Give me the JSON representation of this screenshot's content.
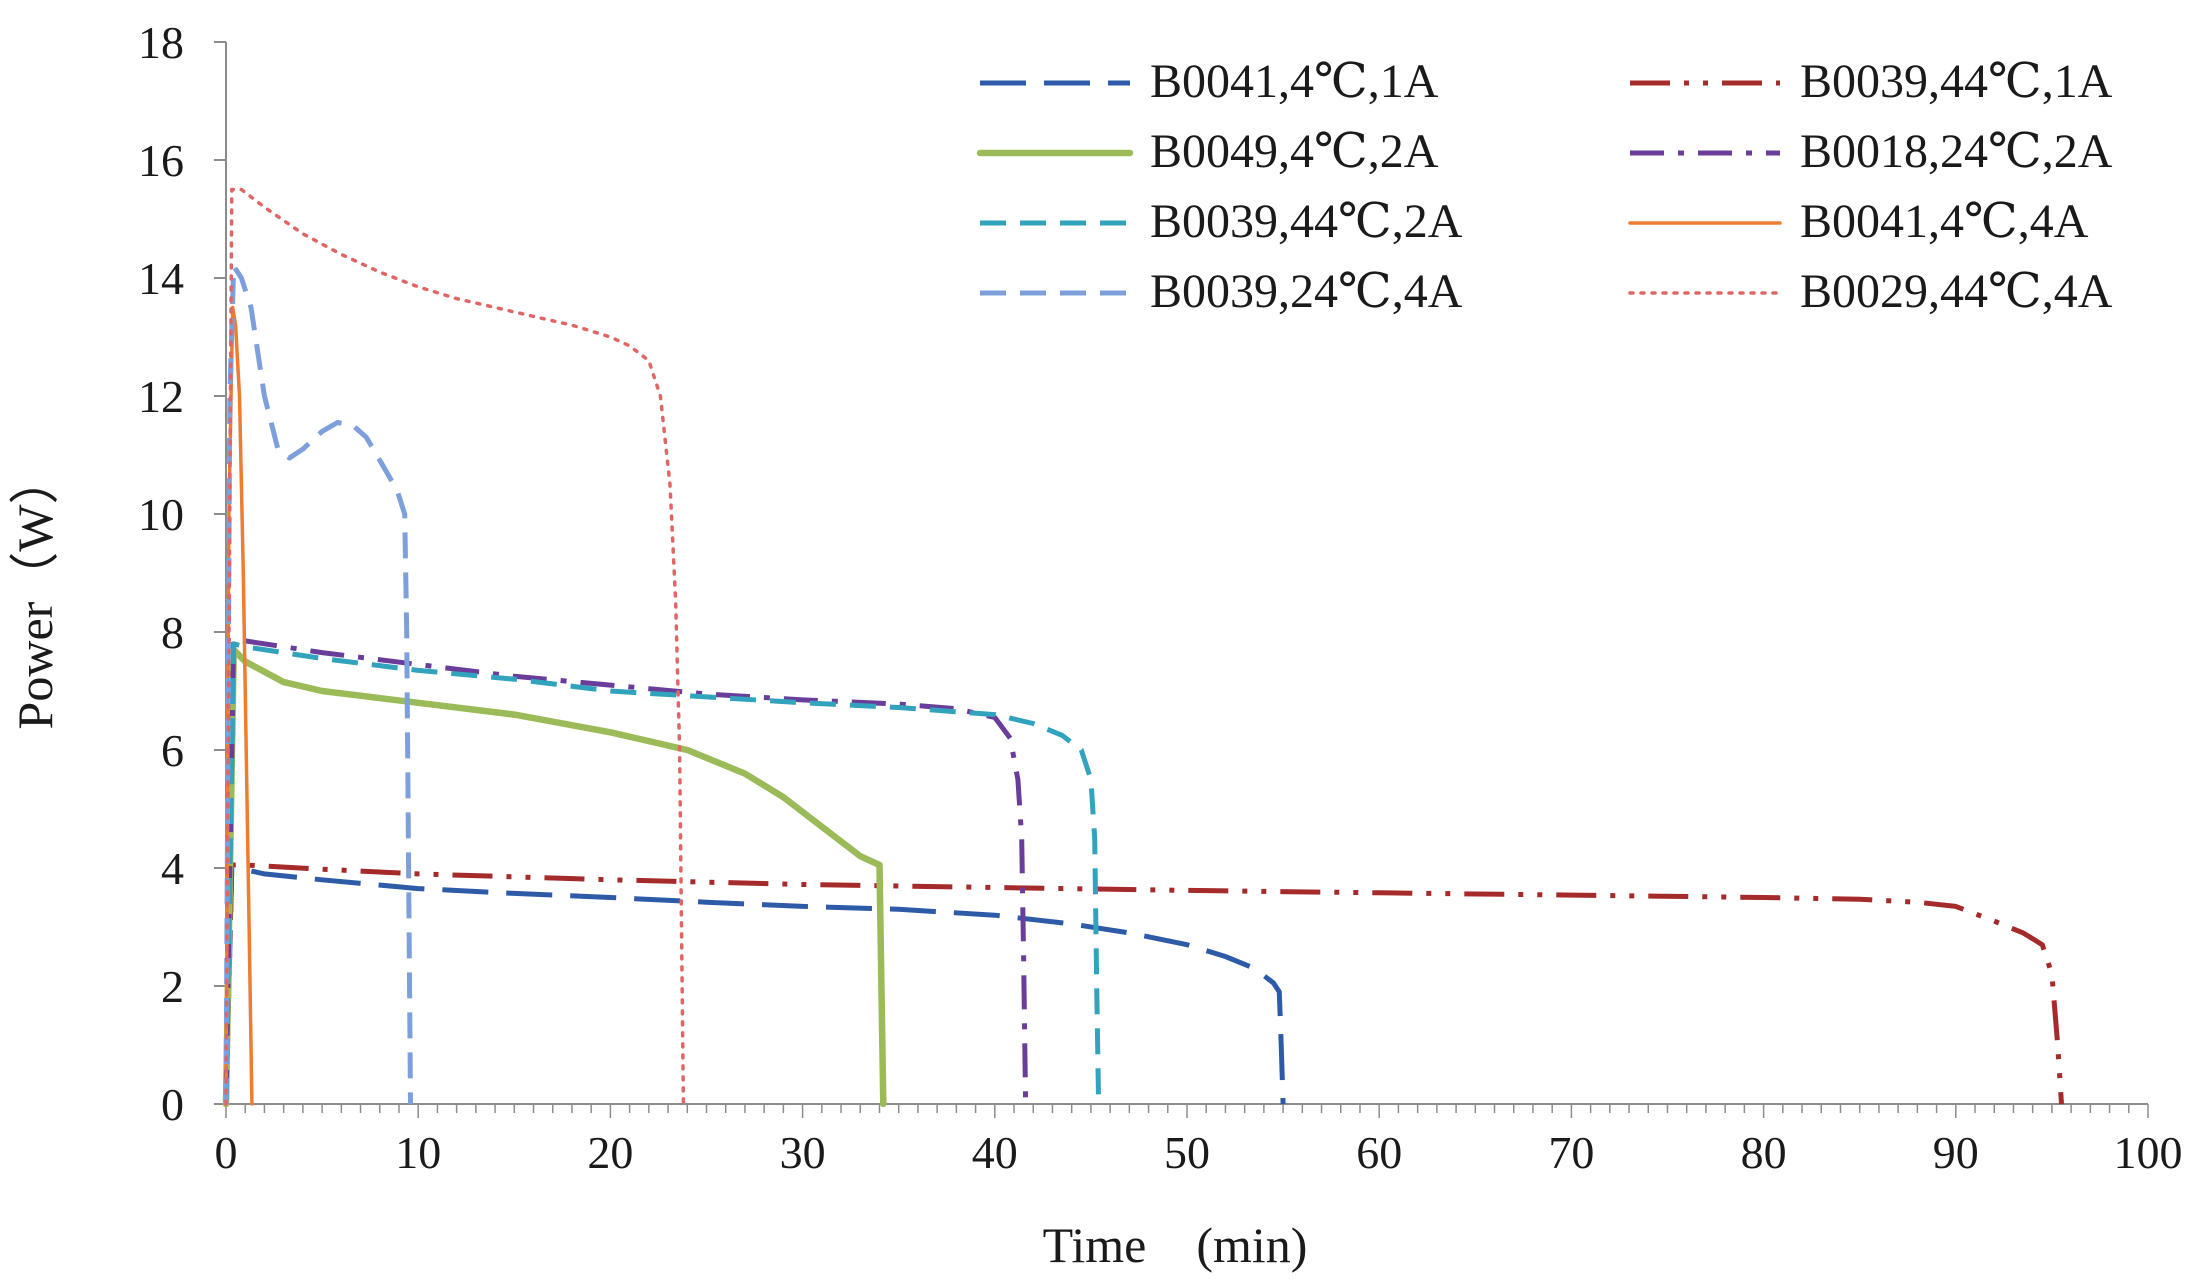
{
  "chart_data": {
    "type": "line",
    "title": "",
    "xlabel": "Time　(min)",
    "ylabel": "Power（W）",
    "xlim": [
      0,
      100
    ],
    "ylim": [
      0,
      18
    ],
    "xticks": [
      0,
      10,
      20,
      30,
      40,
      50,
      60,
      70,
      80,
      90,
      100
    ],
    "yticks": [
      0,
      2,
      4,
      6,
      8,
      10,
      12,
      14,
      16,
      18
    ],
    "x_minor_step": 1,
    "grid": false,
    "legend_position": "top-right",
    "series": [
      {
        "name": "B0041,4℃,1A",
        "color": "#2e5ba8",
        "style": "long-dash",
        "points": [
          [
            0,
            0
          ],
          [
            0.3,
            4.0
          ],
          [
            0.6,
            4.0
          ],
          [
            2,
            3.9
          ],
          [
            5,
            3.8
          ],
          [
            10,
            3.65
          ],
          [
            15,
            3.57
          ],
          [
            20,
            3.5
          ],
          [
            25,
            3.42
          ],
          [
            30,
            3.35
          ],
          [
            35,
            3.3
          ],
          [
            40,
            3.2
          ],
          [
            44,
            3.05
          ],
          [
            47,
            2.9
          ],
          [
            50,
            2.7
          ],
          [
            52,
            2.5
          ],
          [
            53.5,
            2.3
          ],
          [
            54.5,
            2.05
          ],
          [
            54.8,
            1.9
          ],
          [
            54.9,
            1.0
          ],
          [
            55,
            0
          ]
        ]
      },
      {
        "name": "B0039,44℃,1A",
        "color": "#a52a2a",
        "style": "dash-dot-dot",
        "points": [
          [
            0,
            0
          ],
          [
            0.3,
            4.05
          ],
          [
            1,
            4.05
          ],
          [
            5,
            3.98
          ],
          [
            10,
            3.9
          ],
          [
            20,
            3.8
          ],
          [
            30,
            3.72
          ],
          [
            40,
            3.67
          ],
          [
            50,
            3.62
          ],
          [
            60,
            3.58
          ],
          [
            70,
            3.54
          ],
          [
            80,
            3.5
          ],
          [
            85,
            3.47
          ],
          [
            88,
            3.42
          ],
          [
            90,
            3.35
          ],
          [
            92,
            3.1
          ],
          [
            93.5,
            2.9
          ],
          [
            94.5,
            2.7
          ],
          [
            95,
            2.2
          ],
          [
            95.3,
            1.0
          ],
          [
            95.5,
            0
          ]
        ]
      },
      {
        "name": "B0049,4℃,2A",
        "color": "#9bbb59",
        "style": "solid-thick",
        "points": [
          [
            0,
            0
          ],
          [
            0.4,
            7.7
          ],
          [
            1,
            7.5
          ],
          [
            3,
            7.15
          ],
          [
            5,
            7.0
          ],
          [
            10,
            6.8
          ],
          [
            15,
            6.6
          ],
          [
            20,
            6.3
          ],
          [
            24,
            6.0
          ],
          [
            27,
            5.6
          ],
          [
            29,
            5.2
          ],
          [
            31,
            4.7
          ],
          [
            33,
            4.2
          ],
          [
            34,
            4.05
          ],
          [
            34.1,
            2.0
          ],
          [
            34.2,
            0
          ]
        ]
      },
      {
        "name": "B0018,24℃,2A",
        "color": "#6a3d9a",
        "style": "dash-dot",
        "points": [
          [
            0,
            0
          ],
          [
            0.4,
            7.9
          ],
          [
            1,
            7.85
          ],
          [
            5,
            7.65
          ],
          [
            10,
            7.45
          ],
          [
            15,
            7.25
          ],
          [
            20,
            7.1
          ],
          [
            25,
            6.95
          ],
          [
            30,
            6.85
          ],
          [
            35,
            6.78
          ],
          [
            38,
            6.7
          ],
          [
            40,
            6.55
          ],
          [
            40.8,
            6.2
          ],
          [
            41.2,
            5.5
          ],
          [
            41.4,
            4.5
          ],
          [
            41.5,
            2.5
          ],
          [
            41.6,
            0
          ]
        ]
      },
      {
        "name": "B0039,44℃,2A",
        "color": "#31a3bd",
        "style": "dash",
        "points": [
          [
            0,
            0
          ],
          [
            0.4,
            7.8
          ],
          [
            1,
            7.75
          ],
          [
            5,
            7.55
          ],
          [
            10,
            7.35
          ],
          [
            15,
            7.2
          ],
          [
            20,
            7.0
          ],
          [
            25,
            6.9
          ],
          [
            30,
            6.8
          ],
          [
            35,
            6.72
          ],
          [
            40,
            6.6
          ],
          [
            42,
            6.45
          ],
          [
            43.5,
            6.25
          ],
          [
            44.5,
            6.0
          ],
          [
            45,
            5.5
          ],
          [
            45.2,
            4.5
          ],
          [
            45.3,
            2.0
          ],
          [
            45.4,
            0
          ]
        ]
      },
      {
        "name": "B0041,4℃,4A",
        "color": "#ed7d31",
        "style": "solid",
        "points": [
          [
            0,
            0
          ],
          [
            0.15,
            10.0
          ],
          [
            0.35,
            13.5
          ],
          [
            0.5,
            13.2
          ],
          [
            0.7,
            12.0
          ],
          [
            0.9,
            9.0
          ],
          [
            1.05,
            6.0
          ],
          [
            1.2,
            3.0
          ],
          [
            1.3,
            1.0
          ],
          [
            1.35,
            0
          ]
        ]
      },
      {
        "name": "B0039,24℃,4A",
        "color": "#7da0dc",
        "style": "dash",
        "points": [
          [
            0,
            0
          ],
          [
            0.2,
            12.0
          ],
          [
            0.4,
            14.2
          ],
          [
            0.8,
            14.0
          ],
          [
            1.3,
            13.5
          ],
          [
            2,
            12.0
          ],
          [
            2.7,
            11.1
          ],
          [
            3.3,
            10.95
          ],
          [
            4,
            11.1
          ],
          [
            5,
            11.4
          ],
          [
            5.8,
            11.55
          ],
          [
            6.6,
            11.5
          ],
          [
            7.3,
            11.3
          ],
          [
            8.2,
            10.8
          ],
          [
            8.9,
            10.4
          ],
          [
            9.3,
            10.0
          ],
          [
            9.4,
            8.0
          ],
          [
            9.5,
            4.0
          ],
          [
            9.6,
            0
          ]
        ]
      },
      {
        "name": "B0029,44℃,4A",
        "color": "#e06666",
        "style": "dot",
        "points": [
          [
            0,
            0
          ],
          [
            0.3,
            15.5
          ],
          [
            0.8,
            15.5
          ],
          [
            2,
            15.2
          ],
          [
            4,
            14.75
          ],
          [
            6,
            14.4
          ],
          [
            8,
            14.1
          ],
          [
            10,
            13.85
          ],
          [
            12,
            13.65
          ],
          [
            14,
            13.5
          ],
          [
            16,
            13.35
          ],
          [
            18,
            13.2
          ],
          [
            20,
            13.0
          ],
          [
            21,
            12.85
          ],
          [
            22,
            12.6
          ],
          [
            22.6,
            12.0
          ],
          [
            23.1,
            10.5
          ],
          [
            23.4,
            8.5
          ],
          [
            23.6,
            6.0
          ],
          [
            23.7,
            3.0
          ],
          [
            23.8,
            0
          ]
        ]
      }
    ]
  }
}
